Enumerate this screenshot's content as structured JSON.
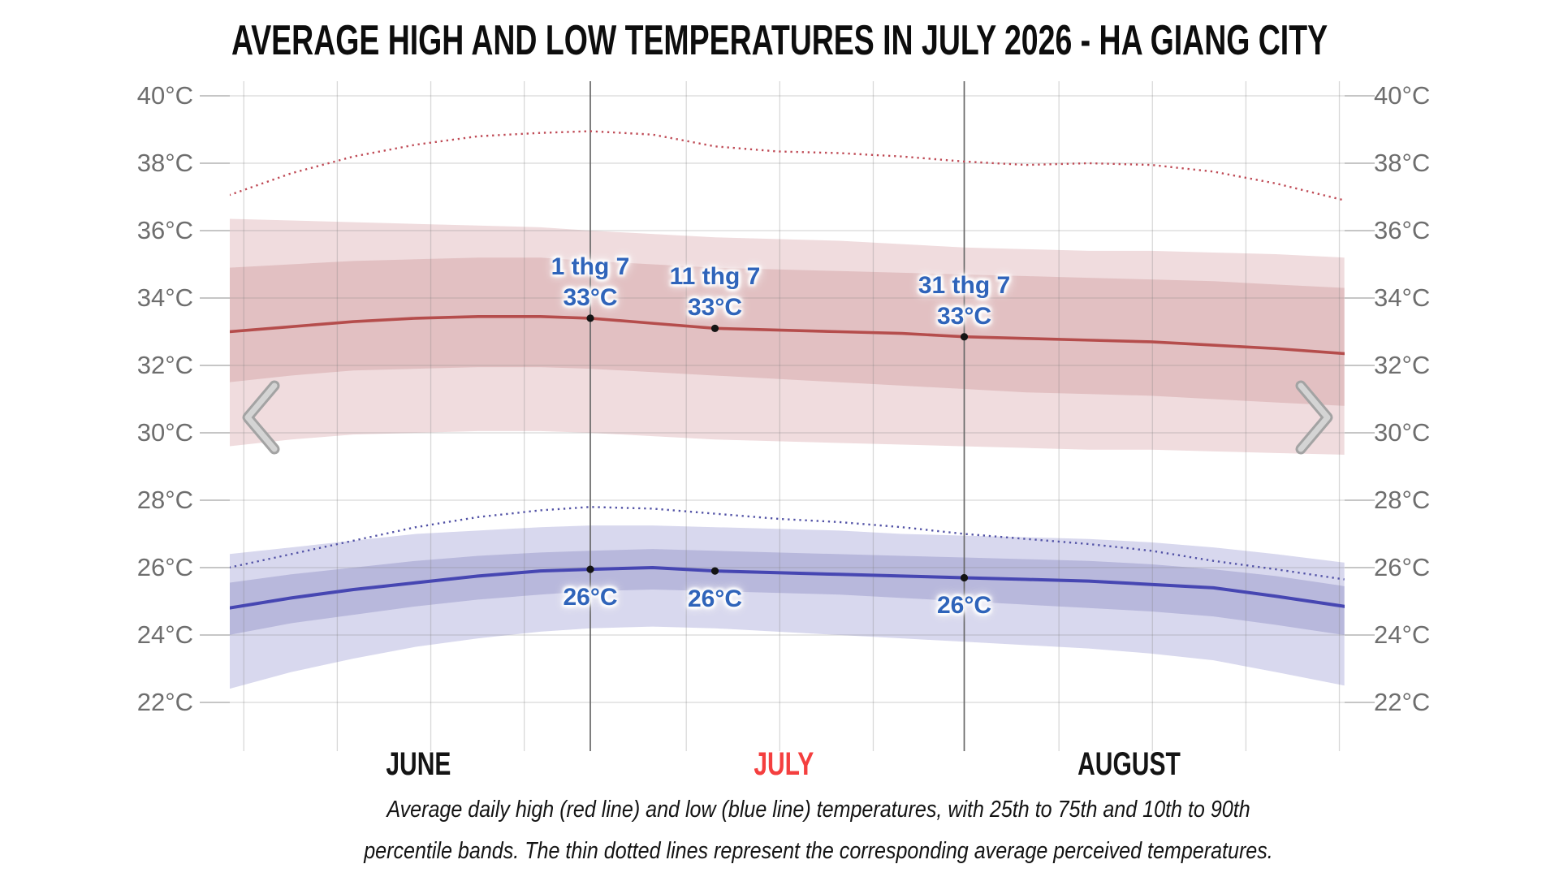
{
  "header": {
    "title": "AVERAGE HIGH AND LOW TEMPERATURES IN JULY 2026 - HA GIANG CITY"
  },
  "caption": {
    "lines": [
      "Average daily high (red line) and low (blue line) temperatures, with 25th to 75th and 10th to 90th",
      "percentile bands. The thin dotted lines represent the corresponding average perceived temperatures."
    ]
  },
  "nav": {
    "prev": "chevron-left",
    "next": "chevron-right"
  },
  "style": {
    "grid_color": "#808080",
    "grid_opacity": 0.3,
    "date_line_color": "#676767",
    "tick_color": "#c6c6c6",
    "dot_color": "#141414",
    "marker_label_color": "#2f64ba",
    "axis_label_color": "#6e6e6e",
    "chevron_outer": "#a3a3a3",
    "chevron_inner": "#d4d4d4"
  },
  "chart_data": {
    "type": "line",
    "title": "AVERAGE HIGH AND LOW TEMPERATURES IN JULY 2026 - HA GIANG CITY",
    "x_axis": {
      "unit": "days relative to 1 July 2026",
      "range": [
        -29,
        60.5
      ],
      "months": [
        {
          "label": "JUNE",
          "day": -13.8,
          "color": "#141414"
        },
        {
          "label": "JULY",
          "day": 15.5,
          "color": "#f43f3f"
        },
        {
          "label": "AUGUST",
          "day": 43.2,
          "color": "#141414"
        }
      ],
      "gridline_days": [
        -27.8,
        -20.3,
        -12.8,
        -5.3,
        7.7,
        15.2,
        22.7,
        37.6,
        45.1,
        52.6,
        60.1
      ],
      "date_line_days": [
        0,
        30
      ]
    },
    "y_axis": {
      "min": 22,
      "max": 40,
      "step": 2,
      "tick_labels": [
        "40°C",
        "38°C",
        "36°C",
        "34°C",
        "32°C",
        "30°C",
        "28°C",
        "26°C",
        "24°C",
        "22°C"
      ]
    },
    "sample_days": [
      -29,
      -24,
      -19,
      -14,
      -9,
      -4,
      0,
      5,
      10,
      15,
      20,
      25,
      30,
      35,
      40,
      45,
      50,
      55,
      60.5
    ],
    "series": [
      {
        "name": "high-10th-90th-band",
        "kind": "band",
        "color": "#f0dcde",
        "upper": [
          36.35,
          36.3,
          36.25,
          36.2,
          36.15,
          36.1,
          36.0,
          35.9,
          35.8,
          35.75,
          35.7,
          35.6,
          35.5,
          35.45,
          35.4,
          35.4,
          35.35,
          35.3,
          35.2
        ],
        "lower": [
          29.6,
          29.8,
          29.95,
          30.0,
          30.05,
          30.05,
          30.0,
          29.9,
          29.8,
          29.75,
          29.7,
          29.65,
          29.6,
          29.55,
          29.5,
          29.5,
          29.45,
          29.4,
          29.35
        ]
      },
      {
        "name": "high-25th-75th-band",
        "kind": "band",
        "color": "#e2c0c2",
        "upper": [
          34.9,
          35.0,
          35.1,
          35.15,
          35.2,
          35.2,
          35.1,
          35.0,
          34.9,
          34.85,
          34.8,
          34.75,
          34.7,
          34.65,
          34.6,
          34.55,
          34.5,
          34.4,
          34.3
        ],
        "lower": [
          31.5,
          31.7,
          31.85,
          31.9,
          31.95,
          31.95,
          31.9,
          31.8,
          31.7,
          31.6,
          31.5,
          31.4,
          31.3,
          31.2,
          31.15,
          31.1,
          31.0,
          30.9,
          30.8
        ]
      },
      {
        "name": "low-10th-90th-band",
        "kind": "band",
        "color": "#d8d8ee",
        "upper": [
          26.4,
          26.6,
          26.8,
          27.0,
          27.1,
          27.2,
          27.25,
          27.25,
          27.2,
          27.15,
          27.1,
          27.0,
          26.95,
          26.9,
          26.85,
          26.75,
          26.6,
          26.4,
          26.15
        ],
        "lower": [
          22.4,
          22.9,
          23.3,
          23.65,
          23.9,
          24.1,
          24.2,
          24.25,
          24.2,
          24.1,
          24.0,
          23.9,
          23.8,
          23.7,
          23.6,
          23.45,
          23.25,
          22.9,
          22.5
        ]
      },
      {
        "name": "low-25th-75th-band",
        "kind": "band",
        "color": "#b8b8dc",
        "upper": [
          25.55,
          25.8,
          26.0,
          26.2,
          26.35,
          26.45,
          26.5,
          26.55,
          26.5,
          26.45,
          26.4,
          26.35,
          26.3,
          26.25,
          26.2,
          26.1,
          25.95,
          25.75,
          25.45
        ],
        "lower": [
          24.0,
          24.35,
          24.6,
          24.85,
          25.05,
          25.2,
          25.3,
          25.35,
          25.3,
          25.25,
          25.2,
          25.1,
          25.0,
          24.9,
          24.8,
          24.7,
          24.55,
          24.3,
          24.0
        ]
      },
      {
        "name": "perceived-high",
        "kind": "line",
        "style": "dotted",
        "color": "#bf4a55",
        "width": 2.4,
        "values": [
          37.05,
          37.7,
          38.2,
          38.55,
          38.8,
          38.9,
          38.95,
          38.85,
          38.5,
          38.35,
          38.3,
          38.2,
          38.05,
          37.95,
          38.0,
          37.95,
          37.75,
          37.4,
          36.9
        ]
      },
      {
        "name": "average-high",
        "kind": "line",
        "style": "solid",
        "color": "#b54d4c",
        "width": 3.6,
        "values": [
          33.0,
          33.15,
          33.3,
          33.4,
          33.45,
          33.45,
          33.4,
          33.25,
          33.1,
          33.05,
          33.0,
          32.95,
          32.85,
          32.8,
          32.75,
          32.7,
          32.6,
          32.5,
          32.35
        ]
      },
      {
        "name": "perceived-low",
        "kind": "line",
        "style": "dotted",
        "color": "#5252a6",
        "width": 2.4,
        "values": [
          26.0,
          26.4,
          26.8,
          27.2,
          27.5,
          27.7,
          27.8,
          27.75,
          27.6,
          27.45,
          27.35,
          27.2,
          27.0,
          26.85,
          26.7,
          26.5,
          26.2,
          25.95,
          25.65
        ]
      },
      {
        "name": "average-low",
        "kind": "line",
        "style": "solid",
        "color": "#4646b2",
        "width": 4.0,
        "values": [
          24.8,
          25.1,
          25.35,
          25.55,
          25.75,
          25.9,
          25.95,
          26.0,
          25.9,
          25.85,
          25.8,
          25.75,
          25.7,
          25.65,
          25.6,
          25.5,
          25.4,
          25.15,
          24.85
        ]
      }
    ],
    "markers": {
      "high": [
        {
          "date_label": "1 thg 7",
          "value_label": "33°C",
          "day": 0,
          "value": 33.4
        },
        {
          "date_label": "11 thg 7",
          "value_label": "33°C",
          "day": 10,
          "value": 33.1
        },
        {
          "date_label": "31 thg 7",
          "value_label": "33°C",
          "day": 30,
          "value": 32.85
        }
      ],
      "low": [
        {
          "value_label": "26°C",
          "day": 0,
          "value": 25.95
        },
        {
          "value_label": "26°C",
          "day": 10,
          "value": 25.9
        },
        {
          "value_label": "26°C",
          "day": 30,
          "value": 25.7
        }
      ]
    }
  }
}
